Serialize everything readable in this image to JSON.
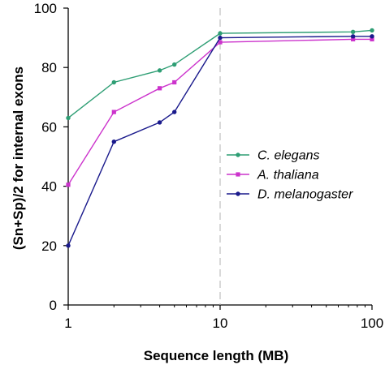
{
  "chart_data": {
    "type": "line",
    "title": "",
    "xlabel": "Sequence length (MB)",
    "ylabel": "(Sn+Sp)/2 for internal exons",
    "xscale": "log",
    "xlim": [
      1,
      100
    ],
    "ylim": [
      0,
      100
    ],
    "xticks": [
      1,
      10,
      100
    ],
    "yticks": [
      0,
      20,
      40,
      60,
      80,
      100
    ],
    "x_tick_labels": [
      "1",
      "10",
      "100"
    ],
    "y_tick_labels": [
      "0",
      "20",
      "40",
      "60",
      "80",
      "100"
    ],
    "grid": false,
    "reference_line": {
      "x": 10,
      "style": "dashed",
      "color": "#b3b3b3"
    },
    "legend_position": "center-right",
    "series": [
      {
        "name": "C. elegans",
        "color": "#2e9e74",
        "marker": "circle",
        "x": [
          1,
          2,
          4,
          5,
          10,
          75,
          100
        ],
        "y": [
          63,
          75,
          79,
          81,
          91.5,
          92,
          92.5
        ]
      },
      {
        "name": "A. thaliana",
        "color": "#cc33cc",
        "marker": "square",
        "x": [
          1,
          2,
          4,
          5,
          10,
          75,
          100
        ],
        "y": [
          40.5,
          65,
          73,
          75,
          88.5,
          89.5,
          89.5
        ]
      },
      {
        "name": "D. melanogaster",
        "color": "#1a1a8c",
        "marker": "circle",
        "x": [
          1,
          2,
          4,
          5,
          10,
          75,
          100
        ],
        "y": [
          20,
          55,
          61.5,
          65,
          90,
          90.5,
          90.5
        ]
      }
    ]
  }
}
